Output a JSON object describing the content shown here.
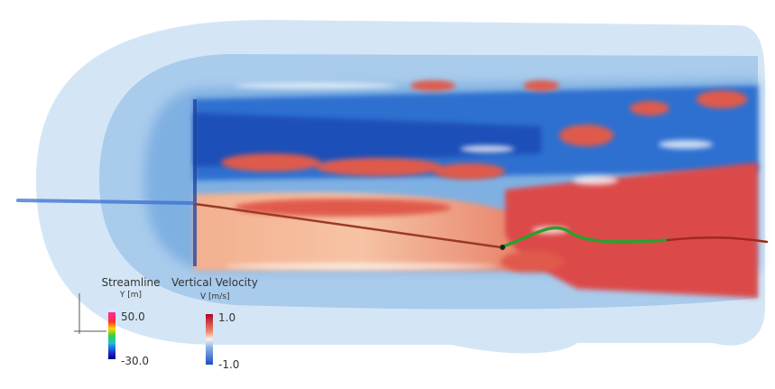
{
  "legends": [
    {
      "title": "Streamline",
      "unit": "Y [m]",
      "max_label": "50.0",
      "min_label": "-30.0"
    },
    {
      "title": "Vertical Velocity",
      "unit": "V [m/s]",
      "max_label": "1.0",
      "min_label": "-1.0"
    }
  ]
}
